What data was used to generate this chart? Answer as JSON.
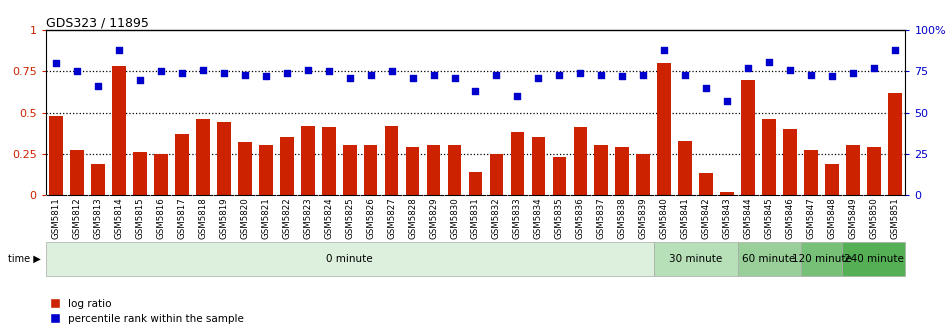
{
  "title": "GDS323 / 11895",
  "samples": [
    "GSM5811",
    "GSM5812",
    "GSM5813",
    "GSM5814",
    "GSM5815",
    "GSM5816",
    "GSM5817",
    "GSM5818",
    "GSM5819",
    "GSM5820",
    "GSM5821",
    "GSM5822",
    "GSM5823",
    "GSM5824",
    "GSM5825",
    "GSM5826",
    "GSM5827",
    "GSM5828",
    "GSM5829",
    "GSM5830",
    "GSM5831",
    "GSM5832",
    "GSM5833",
    "GSM5834",
    "GSM5835",
    "GSM5836",
    "GSM5837",
    "GSM5838",
    "GSM5839",
    "GSM5840",
    "GSM5841",
    "GSM5842",
    "GSM5843",
    "GSM5844",
    "GSM5845",
    "GSM5846",
    "GSM5847",
    "GSM5848",
    "GSM5849",
    "GSM5850",
    "GSM5851"
  ],
  "log_ratio": [
    0.48,
    0.27,
    0.19,
    0.78,
    0.26,
    0.25,
    0.37,
    0.46,
    0.44,
    0.32,
    0.3,
    0.35,
    0.42,
    0.41,
    0.3,
    0.3,
    0.42,
    0.29,
    0.3,
    0.3,
    0.14,
    0.25,
    0.38,
    0.35,
    0.23,
    0.41,
    0.3,
    0.29,
    0.25,
    0.8,
    0.33,
    0.13,
    0.02,
    0.7,
    0.46,
    0.4,
    0.27,
    0.19,
    0.3,
    0.29,
    0.62
  ],
  "percentile_rank": [
    0.8,
    0.75,
    0.66,
    0.88,
    0.7,
    0.75,
    0.74,
    0.76,
    0.74,
    0.73,
    0.72,
    0.74,
    0.76,
    0.75,
    0.71,
    0.73,
    0.75,
    0.71,
    0.73,
    0.71,
    0.63,
    0.73,
    0.6,
    0.71,
    0.73,
    0.74,
    0.73,
    0.72,
    0.73,
    0.88,
    0.73,
    0.65,
    0.57,
    0.77,
    0.81,
    0.76,
    0.73,
    0.72,
    0.74,
    0.77,
    0.88
  ],
  "time_groups": [
    {
      "label": "0 minute",
      "start": 0,
      "end": 29,
      "color": "#ddf0dd"
    },
    {
      "label": "30 minute",
      "start": 29,
      "end": 33,
      "color": "#b8e0b8"
    },
    {
      "label": "60 minute",
      "start": 33,
      "end": 36,
      "color": "#99d099"
    },
    {
      "label": "120 minute",
      "start": 36,
      "end": 38,
      "color": "#77c077"
    },
    {
      "label": "240 minute",
      "start": 38,
      "end": 41,
      "color": "#55b055"
    }
  ],
  "bar_color": "#cc2200",
  "scatter_color": "#0000cc",
  "yticks_left": [
    0,
    0.25,
    0.5,
    0.75,
    1.0
  ],
  "ytick_labels_left": [
    "0",
    "0.25",
    "0.5",
    "0.75",
    "1"
  ],
  "yticks_right": [
    0,
    0.25,
    0.5,
    0.75,
    1.0
  ],
  "ytick_labels_right": [
    "0",
    "25",
    "50",
    "75",
    "100%"
  ],
  "ylim": [
    0,
    1.0
  ],
  "dotted_lines": [
    0.25,
    0.5,
    0.75
  ],
  "legend_log_ratio": "log ratio",
  "legend_percentile": "percentile rank within the sample"
}
